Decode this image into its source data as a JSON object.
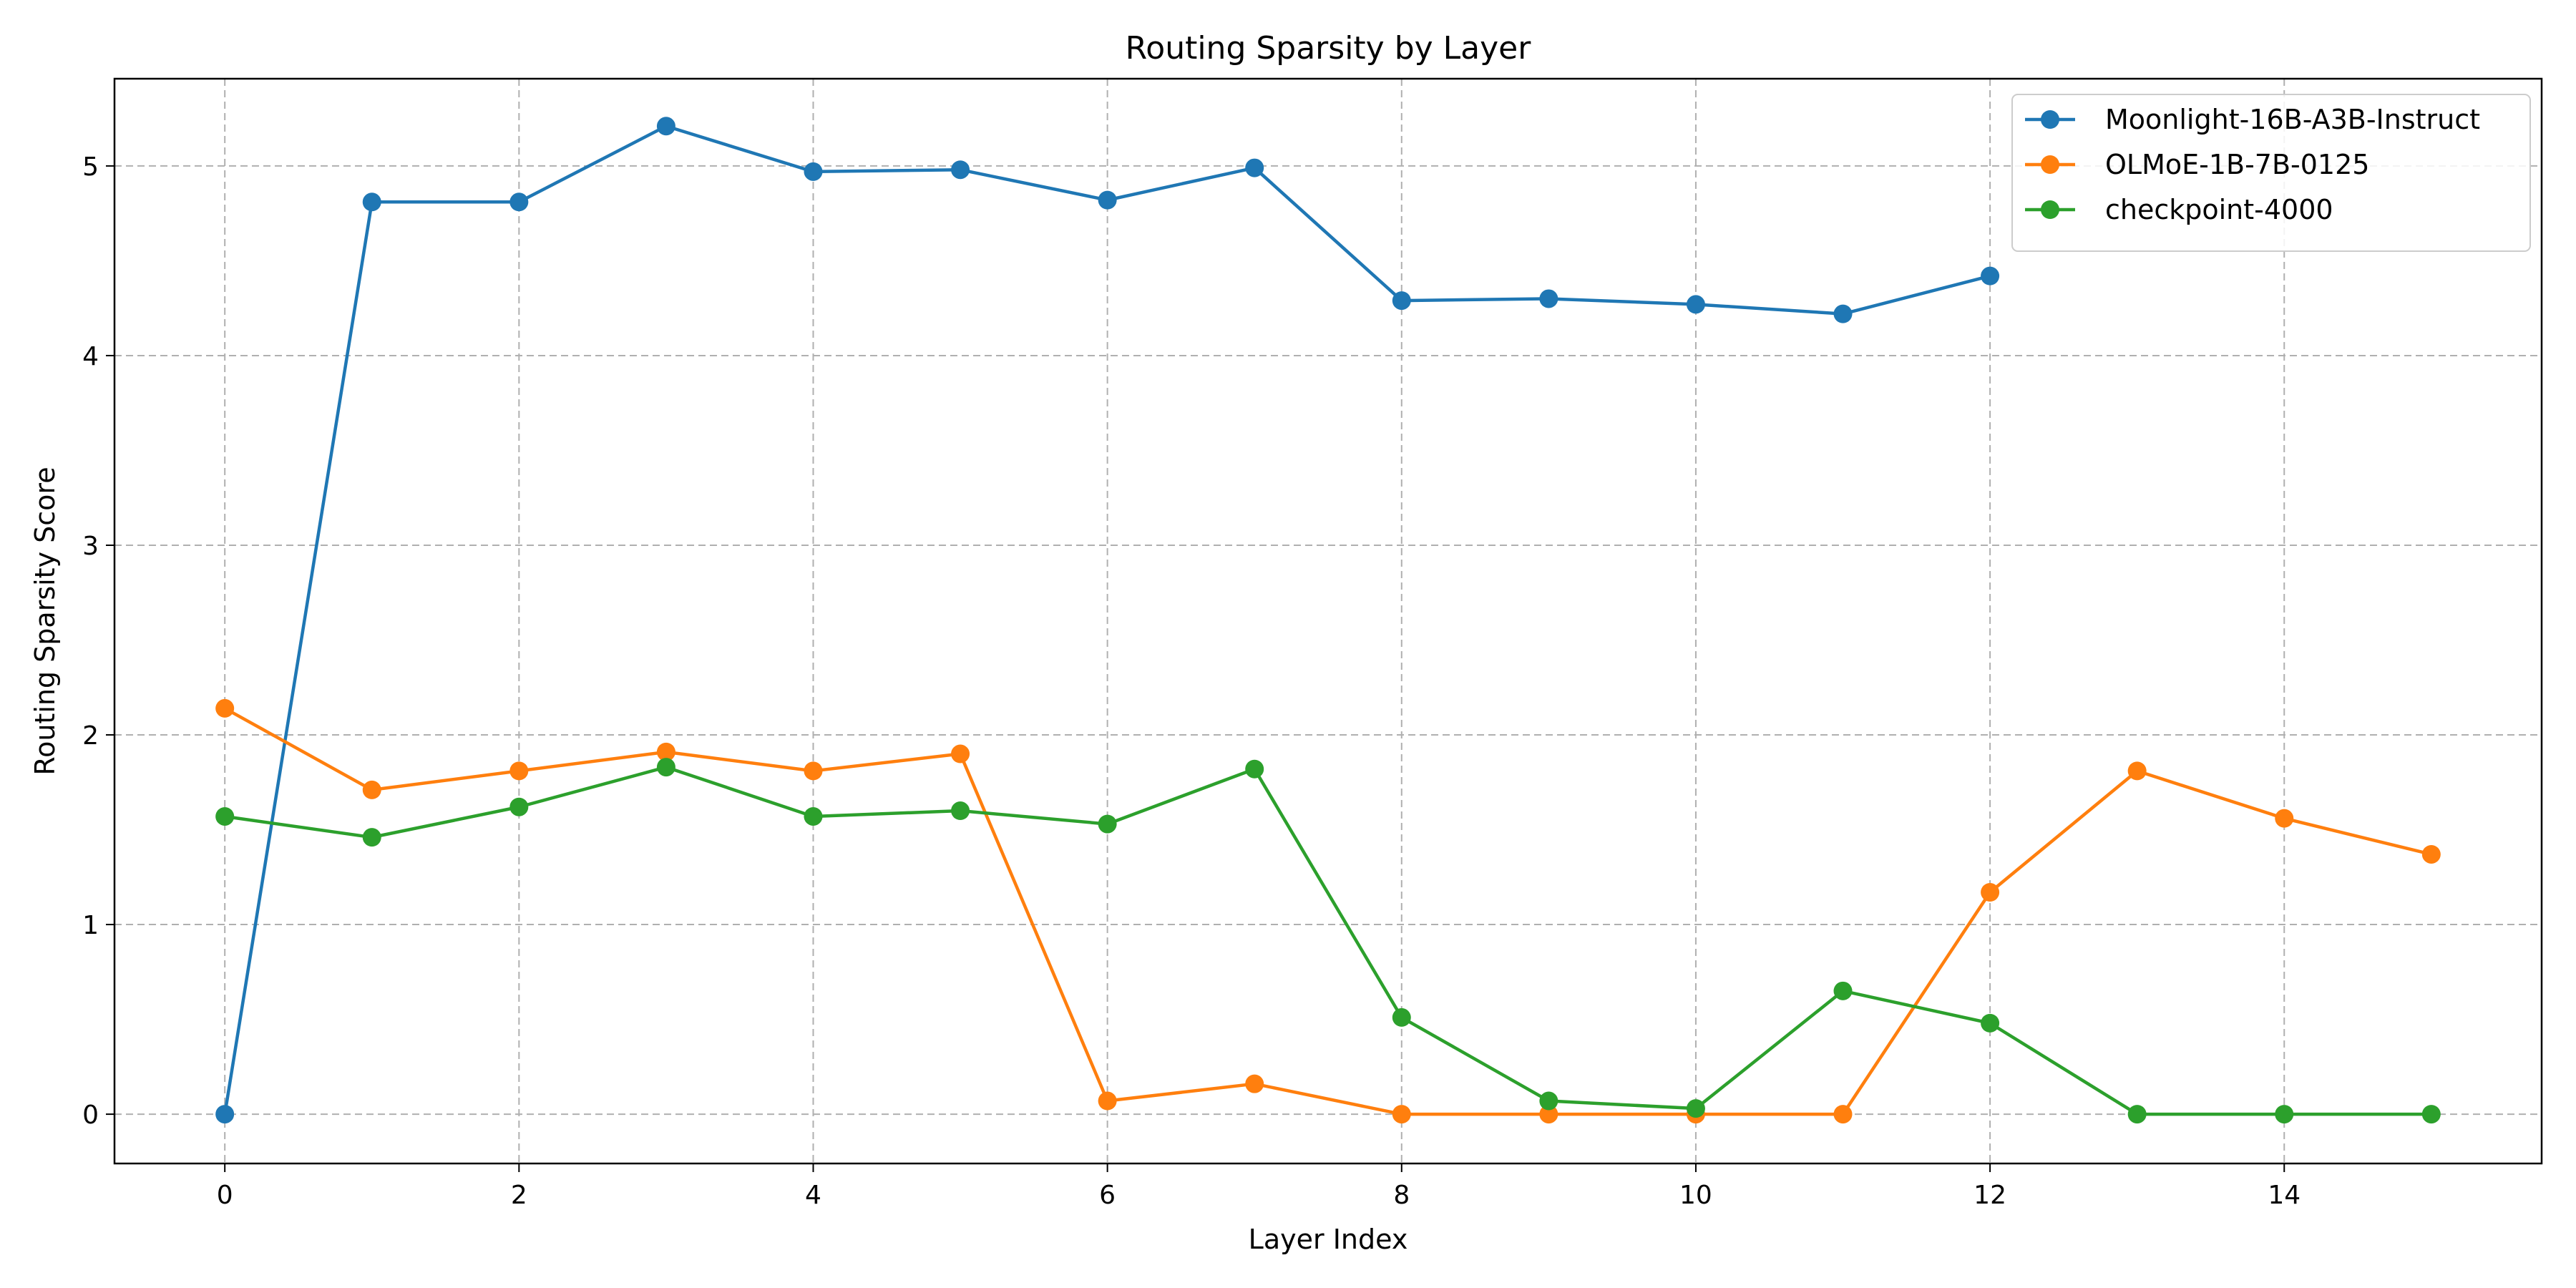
{
  "chart_data": {
    "type": "line",
    "title": "Routing Sparsity by Layer",
    "xlabel": "Layer Index",
    "ylabel": "Routing Sparsity Score",
    "xlim": [
      -0.75,
      15.75
    ],
    "ylim": [
      -0.26,
      5.46
    ],
    "xticks": [
      0,
      2,
      4,
      6,
      8,
      10,
      12,
      14
    ],
    "yticks": [
      0,
      1,
      2,
      3,
      4,
      5
    ],
    "grid": true,
    "legend_position": "top-right",
    "series": [
      {
        "name": "Moonlight-16B-A3B-Instruct",
        "color": "#1f77b4",
        "x": [
          0,
          1,
          2,
          3,
          4,
          5,
          6,
          7,
          8,
          9,
          10,
          11,
          12
        ],
        "y": [
          0.0,
          4.81,
          4.81,
          5.21,
          4.97,
          4.98,
          4.82,
          4.99,
          4.29,
          4.3,
          4.27,
          4.22,
          4.42
        ]
      },
      {
        "name": "OLMoE-1B-7B-0125",
        "color": "#ff7f0e",
        "x": [
          0,
          1,
          2,
          3,
          4,
          5,
          6,
          7,
          8,
          9,
          10,
          11,
          12,
          13,
          14,
          15
        ],
        "y": [
          2.14,
          1.71,
          1.81,
          1.91,
          1.81,
          1.9,
          0.07,
          0.16,
          0.0,
          0.0,
          0.0,
          0.0,
          1.17,
          1.81,
          1.56,
          1.37
        ]
      },
      {
        "name": "checkpoint-4000",
        "color": "#2ca02c",
        "x": [
          0,
          1,
          2,
          3,
          4,
          5,
          6,
          7,
          8,
          9,
          10,
          11,
          12,
          13,
          14,
          15
        ],
        "y": [
          1.57,
          1.46,
          1.62,
          1.83,
          1.57,
          1.6,
          1.53,
          1.82,
          0.51,
          0.07,
          0.03,
          0.65,
          0.48,
          0.0,
          0.0,
          0.0
        ]
      }
    ]
  }
}
